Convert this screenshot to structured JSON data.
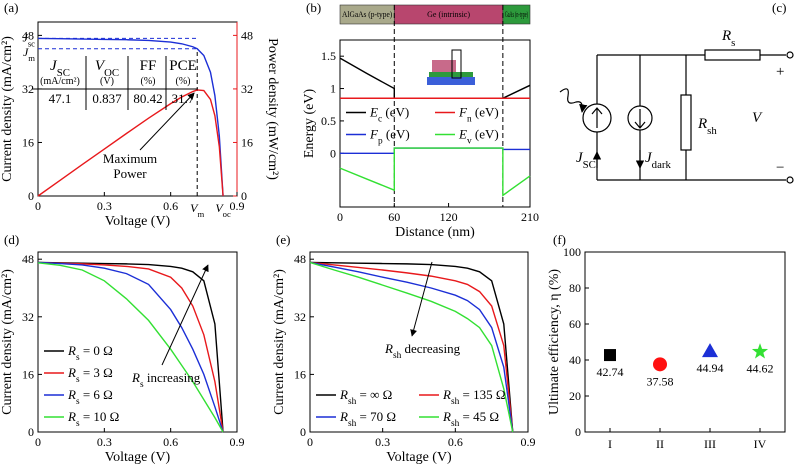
{
  "chart_data": [
    {
      "type": "line",
      "panel_label": "(a)",
      "xlabel": "Voltage (V)",
      "ylabel": "Current density (mA/cm²)",
      "y2label": "Power density (mW/cm²)",
      "xlim": [
        0,
        0.9
      ],
      "xticks": [
        0,
        0.3,
        0.6,
        0.9
      ],
      "ylim": [
        0,
        52
      ],
      "yticks": [
        0,
        16,
        32,
        48
      ],
      "y2lim": [
        0,
        52
      ],
      "y2ticks": [
        0,
        16,
        32,
        48
      ],
      "y2color": "#e8191c",
      "x": [
        0,
        0.1,
        0.2,
        0.3,
        0.4,
        0.5,
        0.6,
        0.65,
        0.7,
        0.72,
        0.75,
        0.78,
        0.8,
        0.82,
        0.837
      ],
      "series": [
        {
          "color": "#1c2fd6",
          "values": [
            47.1,
            47.0,
            46.9,
            46.8,
            46.7,
            46.5,
            46.0,
            45.5,
            44.6,
            44.0,
            42.0,
            37.0,
            30.0,
            18.0,
            0
          ]
        },
        {
          "color": "#e8191c",
          "axis": "y2",
          "values": [
            0,
            4.7,
            9.38,
            14.04,
            18.68,
            23.25,
            27.6,
            29.58,
            31.22,
            31.68,
            31.5,
            28.86,
            24.0,
            14.76,
            0
          ]
        }
      ],
      "x_markers": [
        {
          "value": 0.72,
          "label": {
            "text": "V",
            "sub": "m"
          }
        },
        {
          "value": 0.837,
          "label": {
            "text": "V",
            "sub": "oc"
          }
        }
      ],
      "y_markers": [
        {
          "value": 47.1,
          "label": {
            "text": "J",
            "sub": "sc"
          }
        },
        {
          "value": 44,
          "label": {
            "text": "J",
            "sub": "m"
          }
        }
      ],
      "table": {
        "headers": [
          {
            "text": "J",
            "sub": "SC"
          },
          {
            "text": "V",
            "sub": "OC"
          },
          "FF",
          "PCE"
        ],
        "units": [
          "(mA/cm²)",
          "(V)",
          "(%)",
          "(%)"
        ],
        "values": [
          47.1,
          0.837,
          80.42,
          31.7
        ]
      },
      "annotation_lines": [
        "Maximum",
        "Power"
      ]
    },
    {
      "type": "line",
      "panel_label": "(b)",
      "xlabel": "Distance (nm)",
      "ylabel": "Energy (eV)",
      "xlim": [
        0,
        210
      ],
      "xticks": [
        0,
        60,
        120,
        210
      ],
      "ylim": [
        -0.83,
        1.75
      ],
      "yticks": [
        0,
        0.5,
        1,
        1.5
      ],
      "regions": [
        "AlGaAs (p-type)",
        "Ge (intrinsic)",
        "GaAs (n-type)"
      ],
      "region_edges": [
        0,
        60,
        180,
        210
      ],
      "region_colors": [
        "#a9a98b",
        "#b8466e",
        "#2d9a3c"
      ],
      "legend": "center",
      "legend_columns": 2,
      "x": [
        0,
        30,
        60,
        60,
        120,
        180,
        180,
        210
      ],
      "series": [
        {
          "name": {
            "text": "E",
            "sub": "c",
            "after": " (eV)"
          },
          "color": "#000000",
          "values": [
            1.47,
            1.23,
            1.0,
            0.85,
            0.85,
            0.85,
            0.85,
            1.05
          ]
        },
        {
          "name": {
            "text": "F",
            "sub": "n",
            "after": " (eV)"
          },
          "color": "#e8191c",
          "values": [
            0.85,
            0.85,
            0.85,
            0.85,
            0.85,
            0.85,
            0.85,
            0.85
          ]
        },
        {
          "name": {
            "text": "F",
            "sub": "p",
            "after": " (eV)"
          },
          "color": "#1c2fd6",
          "values": [
            0,
            0,
            0,
            0.08,
            0.08,
            0.08,
            0.06,
            0.06
          ]
        },
        {
          "name": {
            "text": "E",
            "sub": "v",
            "after": " (eV)"
          },
          "color": "#33e033",
          "values": [
            -0.23,
            -0.4,
            -0.57,
            0.08,
            0.08,
            0.08,
            -0.65,
            -0.35
          ]
        }
      ]
    },
    {
      "type": "line",
      "panel_label": "(d)",
      "xlabel": "Voltage (V)",
      "ylabel": "Current density (mA/cm²)",
      "xlim": [
        0,
        0.9
      ],
      "xticks": [
        0,
        0.3,
        0.6,
        0.9
      ],
      "ylim": [
        0,
        50
      ],
      "yticks": [
        0,
        16,
        32,
        48
      ],
      "legend": "lower left",
      "legend_columns": 1,
      "annotation": {
        "text": "R",
        "sub": "s",
        "after": " increasing"
      },
      "x": [
        0,
        0.1,
        0.2,
        0.3,
        0.4,
        0.5,
        0.6,
        0.65,
        0.7,
        0.75,
        0.8,
        0.837
      ],
      "series": [
        {
          "name": {
            "text": "R",
            "sub": "s",
            "after": " = 0 Ω"
          },
          "color": "#000000",
          "values": [
            47.1,
            47,
            46.9,
            46.8,
            46.7,
            46.5,
            46,
            45.5,
            44.5,
            42,
            30,
            0
          ]
        },
        {
          "name": {
            "text": "R",
            "sub": "s",
            "after": " = 3 Ω"
          },
          "color": "#e8191c",
          "values": [
            47.1,
            46.9,
            46.7,
            46.4,
            46,
            45.3,
            43,
            40,
            35,
            27,
            14,
            0
          ]
        },
        {
          "name": {
            "text": "R",
            "sub": "s",
            "after": " = 6 Ω"
          },
          "color": "#1c2fd6",
          "values": [
            47.1,
            46.8,
            46.4,
            45.5,
            44,
            41,
            34,
            29,
            23,
            16,
            7,
            0
          ]
        },
        {
          "name": {
            "text": "R",
            "sub": "s",
            "after": " = 10 Ω"
          },
          "color": "#33e033",
          "values": [
            47,
            46.3,
            45,
            42,
            37,
            31,
            23,
            18.5,
            14,
            9,
            4,
            0
          ]
        }
      ]
    },
    {
      "type": "line",
      "panel_label": "(e)",
      "xlabel": "Voltage (V)",
      "ylabel": "Current density (mA/cm²)",
      "xlim": [
        0,
        0.9
      ],
      "xticks": [
        0,
        0.3,
        0.6,
        0.9
      ],
      "ylim": [
        0,
        50
      ],
      "yticks": [
        0,
        16,
        32,
        48
      ],
      "legend": "lower center",
      "legend_columns": 2,
      "annotation": {
        "text": "R",
        "sub": "sh",
        "after": " decreasing"
      },
      "x": [
        0,
        0.1,
        0.2,
        0.3,
        0.4,
        0.5,
        0.6,
        0.65,
        0.7,
        0.75,
        0.8,
        0.837
      ],
      "series": [
        {
          "name": {
            "text": "R",
            "sub": "sh",
            "after": " = ∞ Ω"
          },
          "color": "#000000",
          "values": [
            47.1,
            47,
            46.9,
            46.8,
            46.7,
            46.5,
            46,
            45.5,
            44.5,
            42,
            30,
            0
          ]
        },
        {
          "name": {
            "text": "R",
            "sub": "sh",
            "after": " = 135 Ω"
          },
          "color": "#e8191c",
          "values": [
            47.1,
            46.4,
            45.7,
            45,
            44.2,
            43.3,
            42,
            41,
            39,
            35,
            24,
            0
          ]
        },
        {
          "name": {
            "text": "R",
            "sub": "sh",
            "after": " = 70 Ω"
          },
          "color": "#1c2fd6",
          "values": [
            47.1,
            45.8,
            44.5,
            43,
            41.6,
            40,
            38,
            36.5,
            34,
            29,
            18,
            0
          ]
        },
        {
          "name": {
            "text": "R",
            "sub": "sh",
            "after": " = 45 Ω"
          },
          "color": "#33e033",
          "values": [
            47.1,
            45,
            43,
            40.8,
            38.6,
            36.3,
            33.5,
            31.5,
            29,
            24,
            12,
            0
          ]
        }
      ]
    },
    {
      "type": "scatter",
      "panel_label": "(f)",
      "ylabel": "Ultimate efficiency, η (%)",
      "categories": [
        "I",
        "II",
        "III",
        "IV"
      ],
      "values": [
        42.74,
        37.58,
        44.94,
        44.62
      ],
      "colors": [
        "#000000",
        "#ff1010",
        "#1c2fd6",
        "#33e033"
      ],
      "markers": [
        "square",
        "circle",
        "triangle",
        "star"
      ],
      "ylim": [
        0,
        100
      ],
      "yticks": [
        0,
        20,
        40,
        60,
        80,
        100
      ]
    }
  ],
  "circuit": {
    "panel_label": "(c)",
    "labels": {
      "rs": {
        "text": "R",
        "sub": "s"
      },
      "rsh": {
        "text": "R",
        "sub": "sh"
      },
      "jsc": {
        "text": "J",
        "sub": "SC"
      },
      "jdark": {
        "text": "J",
        "sub": "dark"
      },
      "v": {
        "text": "V"
      },
      "plus": "+",
      "minus": "−"
    }
  }
}
